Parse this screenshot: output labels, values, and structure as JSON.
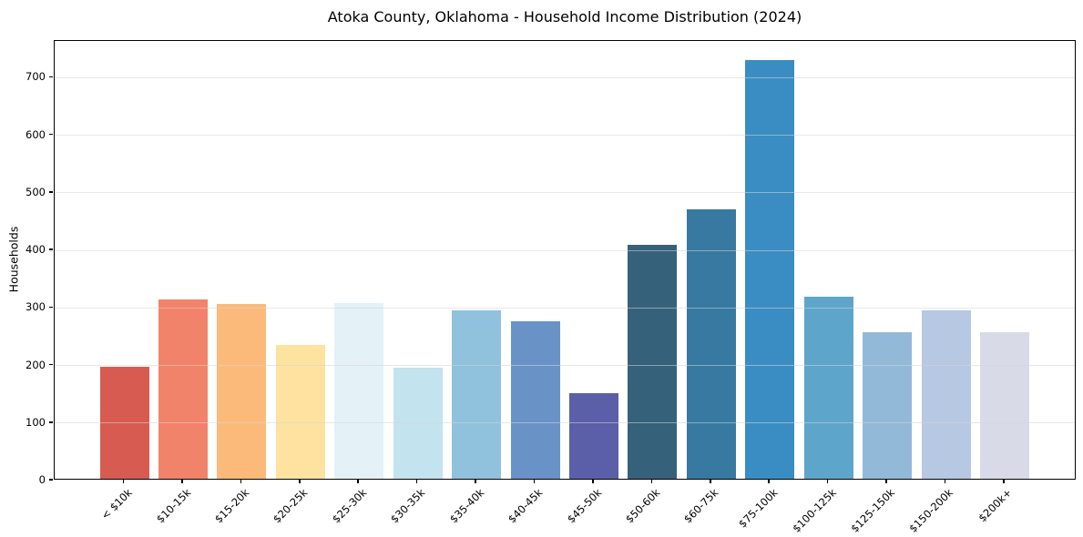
{
  "title": "Atoka County, Oklahoma - Household Income Distribution (2024)",
  "chart_data": {
    "type": "bar",
    "title": "Atoka County, Oklahoma - Household Income Distribution (2024)",
    "xlabel": "",
    "ylabel": "Households",
    "categories": [
      "< $10k",
      "$10-15k",
      "$15-20k",
      "$20-25k",
      "$25-30k",
      "$30-35k",
      "$35-40k",
      "$40-45k",
      "$45-50k",
      "$50-60k",
      "$60-75k",
      "$75-100k",
      "$100-125k",
      "$125-150k",
      "$150-200k",
      "$200k+"
    ],
    "values": [
      195,
      311,
      303,
      232,
      306,
      193,
      292,
      274,
      149,
      407,
      469,
      727,
      316,
      255,
      293,
      254
    ],
    "bar_colors": [
      "#d85b52",
      "#f1836a",
      "#fbba7a",
      "#fde2a0",
      "#e4f1f7",
      "#c3e3ef",
      "#90c1dd",
      "#6993c7",
      "#5a5fa7",
      "#36617a",
      "#3779a1",
      "#3a8dc2",
      "#5ea5cb",
      "#93b9d9",
      "#b7c8e2",
      "#d8dae8"
    ],
    "yticks": [
      0,
      100,
      200,
      300,
      400,
      500,
      600,
      700
    ],
    "ylim": [
      0,
      764
    ],
    "grid": "horizontal",
    "gridline_color": "#e8e8e8",
    "legend": "none",
    "background": "#ffffff",
    "xtick_rotation_deg": 45
  }
}
